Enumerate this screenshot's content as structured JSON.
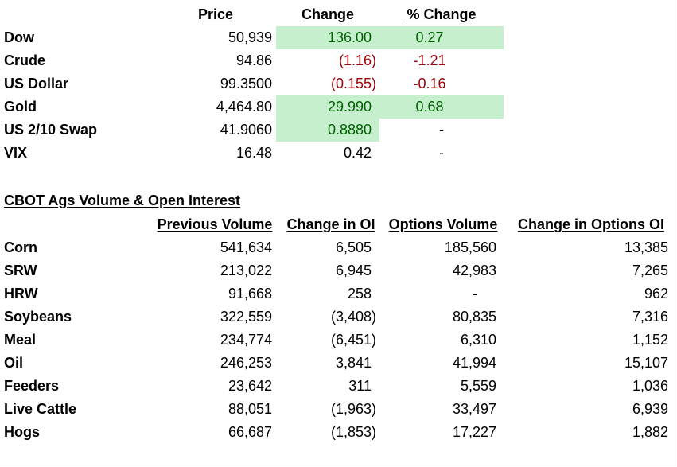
{
  "top_table": {
    "headers": {
      "price": "Price",
      "change": "Change ",
      "pct_change": "% Change"
    },
    "rows": [
      {
        "name": "Dow",
        "price": "50,939",
        "change": "136.00",
        "pct": "0.27"
      },
      {
        "name": "Crude",
        "price": "94.86",
        "change": "(1.16)",
        "pct": "-1.21"
      },
      {
        "name": "US Dollar",
        "price": "99.3500",
        "change": "(0.155)",
        "pct": "-0.16"
      },
      {
        "name": "Gold",
        "price": "4,464.80",
        "change": "29.990",
        "pct": "0.68"
      },
      {
        "name": "US 2/10 Swap",
        "price": "41.9060",
        "change": "0.8880",
        "pct": "-"
      },
      {
        "name": "VIX",
        "price": "16.48",
        "change": "0.42",
        "pct": "-"
      }
    ]
  },
  "cbot": {
    "title": "CBOT Ags Volume & Open Interest",
    "headers": {
      "prev_volume": "Previous Volume",
      "change_oi": "Change in OI",
      "options_volume": "Options Volume",
      "change_options_oi": "Change in Options OI"
    },
    "rows": [
      {
        "name": "Corn",
        "prev": "541,634",
        "oi": "6,505",
        "opt": "185,560",
        "copt": "13,385"
      },
      {
        "name": "SRW",
        "prev": "213,022",
        "oi": "6,945",
        "opt": "42,983",
        "copt": "7,265"
      },
      {
        "name": "HRW",
        "prev": "91,668",
        "oi": "258",
        "opt": "-",
        "copt": "962"
      },
      {
        "name": "Soybeans",
        "prev": "322,559",
        "oi": "(3,408)",
        "opt": "80,835",
        "copt": "7,316"
      },
      {
        "name": "Meal",
        "prev": "234,774",
        "oi": "(6,451)",
        "opt": "6,310",
        "copt": "1,152"
      },
      {
        "name": "Oil",
        "prev": "246,253",
        "oi": "3,841",
        "opt": "41,994",
        "copt": "15,107"
      },
      {
        "name": "Feeders",
        "prev": "23,642",
        "oi": "311",
        "opt": "5,559",
        "copt": "1,036"
      },
      {
        "name": "Live Cattle",
        "prev": "88,051",
        "oi": "(1,963)",
        "opt": "33,497",
        "copt": "6,939"
      },
      {
        "name": "Hogs",
        "prev": "66,687",
        "oi": "(1,853)",
        "opt": "17,227",
        "copt": "1,882"
      }
    ]
  },
  "colors": {
    "positive_fill": "#c6efce",
    "positive_text": "#006100",
    "negative_text": "#9c0006"
  }
}
